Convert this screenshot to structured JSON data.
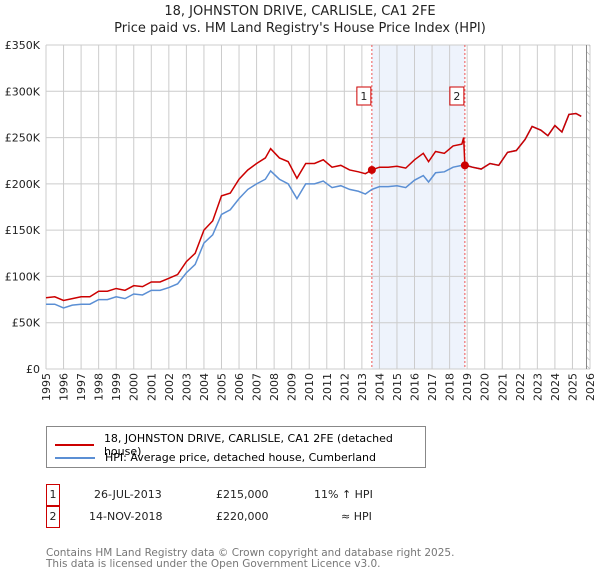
{
  "chart_data": {
    "type": "line",
    "title": "18, JOHNSTON DRIVE, CARLISLE, CA1 2FE",
    "subtitle": "Price paid vs. HM Land Registry's House Price Index (HPI)",
    "xlim": [
      1995,
      2026
    ],
    "ylim": [
      0,
      350000
    ],
    "x_ticks": [
      "1995",
      "1996",
      "1997",
      "1998",
      "1999",
      "2000",
      "2001",
      "2002",
      "2003",
      "2004",
      "2005",
      "2006",
      "2007",
      "2008",
      "2009",
      "2010",
      "2011",
      "2012",
      "2013",
      "2014",
      "2015",
      "2016",
      "2017",
      "2018",
      "2019",
      "2020",
      "2021",
      "2022",
      "2023",
      "2024",
      "2025",
      "2026"
    ],
    "y_ticks": [
      {
        "v": 0,
        "label": "£0"
      },
      {
        "v": 50000,
        "label": "£50K"
      },
      {
        "v": 100000,
        "label": "£100K"
      },
      {
        "v": 150000,
        "label": "£150K"
      },
      {
        "v": 200000,
        "label": "£200K"
      },
      {
        "v": 250000,
        "label": "£250K"
      },
      {
        "v": 300000,
        "label": "£300K"
      },
      {
        "v": 350000,
        "label": "£350K"
      }
    ],
    "grid": true,
    "series": [
      {
        "name": "18, JOHNSTON DRIVE, CARLISLE, CA1 2FE (detached house)",
        "color": "#cc0000",
        "x": [
          1995,
          1995.5,
          1996,
          1996.5,
          1997,
          1997.5,
          1998,
          1998.5,
          1999,
          1999.5,
          2000,
          2000.5,
          2001,
          2001.5,
          2002,
          2002.5,
          2003,
          2003.5,
          2004,
          2004.5,
          2005,
          2005.5,
          2006,
          2006.5,
          2007,
          2007.5,
          2007.8,
          2008.3,
          2008.8,
          2009.3,
          2009.8,
          2010.3,
          2010.8,
          2011.3,
          2011.8,
          2012.3,
          2012.8,
          2013.2,
          2013.57,
          2014,
          2014.5,
          2015,
          2015.5,
          2016,
          2016.5,
          2016.8,
          2017.2,
          2017.7,
          2018.2,
          2018.7,
          2018.8,
          2018.87,
          2019.3,
          2019.8,
          2020.3,
          2020.8,
          2021.3,
          2021.8,
          2022.3,
          2022.7,
          2023.2,
          2023.6,
          2024,
          2024.4,
          2024.8,
          2025.2,
          2025.5
        ],
        "y": [
          77000,
          78000,
          74000,
          76000,
          78000,
          78000,
          84000,
          84000,
          87000,
          85000,
          90000,
          89000,
          94000,
          94000,
          98000,
          102000,
          116000,
          125000,
          150000,
          160000,
          187000,
          190000,
          205000,
          215000,
          222000,
          228000,
          238000,
          228000,
          224000,
          206000,
          222000,
          222000,
          226000,
          218000,
          220000,
          215000,
          213000,
          211000,
          215000,
          218000,
          218000,
          219000,
          217000,
          226000,
          233000,
          224000,
          235000,
          233000,
          241000,
          243000,
          250000,
          220000,
          218000,
          216000,
          222000,
          220000,
          234000,
          236000,
          248000,
          262000,
          258000,
          252000,
          263000,
          256000,
          275000,
          276000,
          273000
        ]
      },
      {
        "name": "HPI: Average price, detached house, Cumberland",
        "color": "#5b8fd4",
        "x": [
          1995,
          1995.5,
          1996,
          1996.5,
          1997,
          1997.5,
          1998,
          1998.5,
          1999,
          1999.5,
          2000,
          2000.5,
          2001,
          2001.5,
          2002,
          2002.5,
          2003,
          2003.5,
          2004,
          2004.5,
          2005,
          2005.5,
          2006,
          2006.5,
          2007,
          2007.5,
          2007.8,
          2008.3,
          2008.8,
          2009.3,
          2009.8,
          2010.3,
          2010.8,
          2011.3,
          2011.8,
          2012.3,
          2012.8,
          2013.2,
          2013.57,
          2014,
          2014.5,
          2015,
          2015.5,
          2016,
          2016.5,
          2016.8,
          2017.2,
          2017.7,
          2018.2,
          2018.7,
          2018.87,
          2019.3,
          2019.8,
          2020.3,
          2020.8,
          2021.3,
          2021.8,
          2022.3,
          2022.7,
          2023.2,
          2023.6,
          2024,
          2024.4,
          2024.8,
          2025.2,
          2025.5
        ],
        "y": [
          70000,
          70000,
          66000,
          69000,
          70000,
          70000,
          75000,
          75000,
          78000,
          76000,
          81000,
          80000,
          85000,
          85000,
          88000,
          92000,
          104000,
          113000,
          136000,
          145000,
          167000,
          172000,
          184000,
          194000,
          200000,
          205000,
          214000,
          205000,
          200000,
          184000,
          200000,
          200000,
          203000,
          196000,
          198000,
          194000,
          192000,
          189000,
          194000,
          197000,
          197000,
          198000,
          196000,
          204000,
          209000,
          202000,
          212000,
          213000,
          218000,
          220000,
          221000,
          218000,
          216000,
          222000,
          220000,
          234000,
          236000,
          248000,
          262000,
          258000,
          252000,
          263000,
          256000,
          275000,
          276000,
          273000
        ]
      }
    ],
    "shaded_range": [
      2013.57,
      2018.87
    ],
    "hatch_from": 2025.8,
    "sales": [
      {
        "num": "1",
        "x": 2013.57,
        "y": 215000,
        "date": "26-JUL-2013",
        "price": "£215,000",
        "hpi": "11% ↑ HPI"
      },
      {
        "num": "2",
        "x": 2018.87,
        "y": 220000,
        "date": "14-NOV-2018",
        "price": "£220,000",
        "hpi": "≈ HPI"
      }
    ]
  },
  "footer": [
    "Contains HM Land Registry data © Crown copyright and database right 2025.",
    "This data is licensed under the Open Government Licence v3.0."
  ]
}
